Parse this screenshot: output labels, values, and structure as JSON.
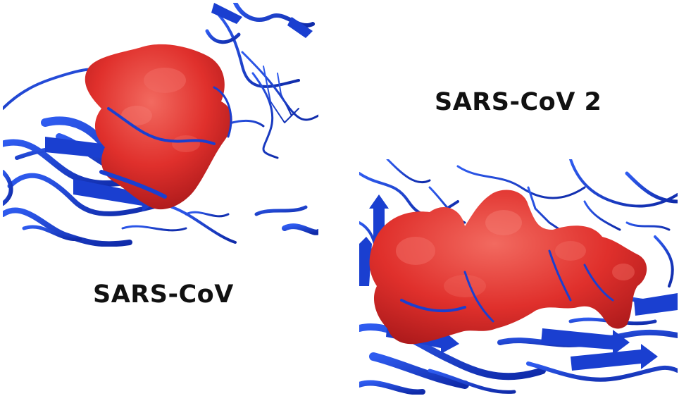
{
  "panels": {
    "left": {
      "label": "SARS-CoV"
    },
    "right": {
      "label": "SARS-CoV 2"
    }
  },
  "colors": {
    "protein_ribbon": "#1a3fd0",
    "binding_surface": "#e0302c",
    "background": "#ffffff",
    "label_text": "#111111"
  }
}
